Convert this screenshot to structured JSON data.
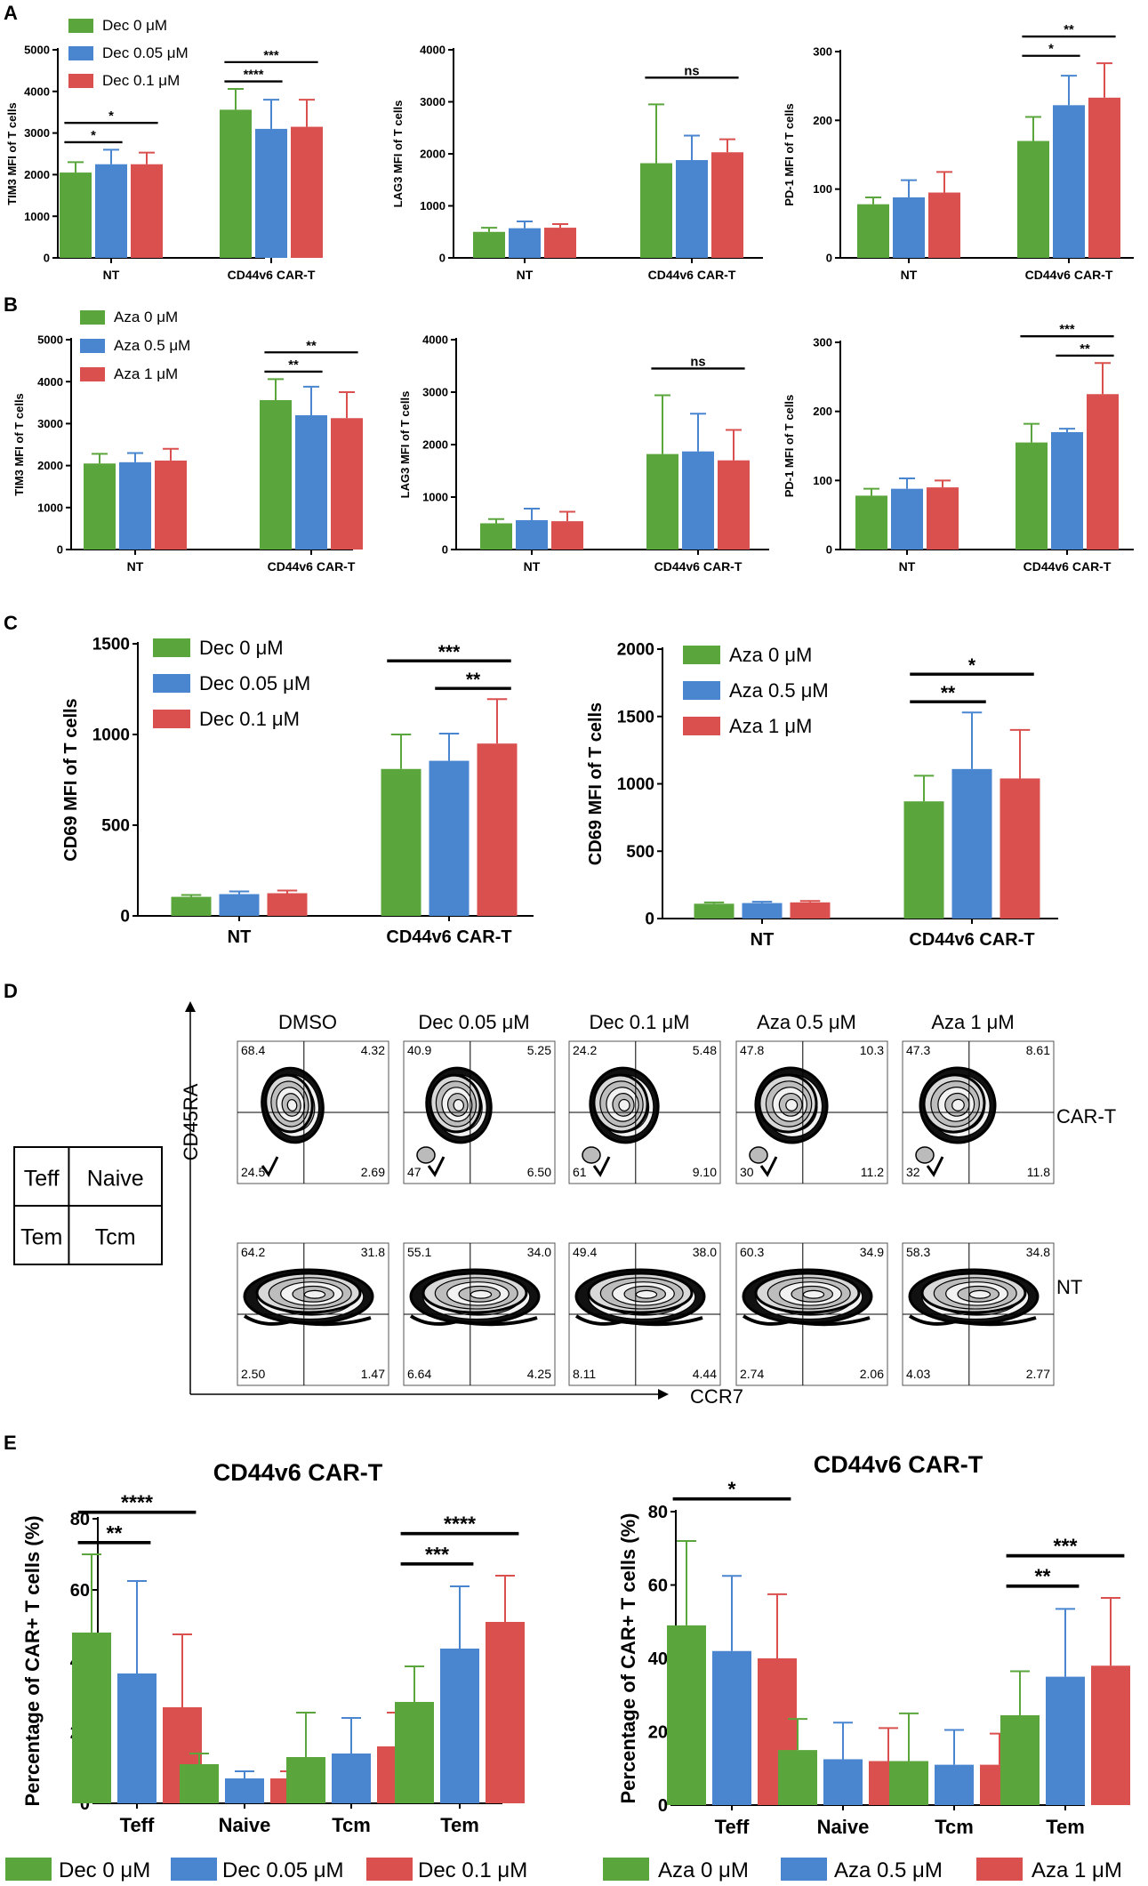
{
  "colors": {
    "green": "#5aa63c",
    "blue": "#4a86d0",
    "red": "#d9504f"
  },
  "panel_labels": {
    "A": "A",
    "B": "B",
    "C": "C",
    "D": "D",
    "E": "E"
  },
  "chart_data": [
    {
      "id": "A1",
      "type": "bar",
      "panel": "A",
      "categories": [
        "NT",
        "CD44v6 CAR-T"
      ],
      "ylabel": "TIM3 MFI of T cells",
      "ylim": [
        0,
        5000
      ],
      "ticks": [
        "0",
        "1000",
        "2000",
        "3000",
        "4000",
        "5000"
      ],
      "legend": [
        "Dec 0 μM",
        "Dec 0.05 μM",
        "Dec 0.1 μM"
      ],
      "series": [
        {
          "name": "Dec 0 μM",
          "values": [
            2050,
            3560
          ],
          "errors": [
            250,
            500
          ]
        },
        {
          "name": "Dec 0.05 μM",
          "values": [
            2250,
            3100
          ],
          "errors": [
            350,
            700
          ]
        },
        {
          "name": "Dec 0.1 μM",
          "values": [
            2250,
            3150
          ],
          "errors": [
            280,
            650
          ]
        }
      ],
      "sig": [
        {
          "g": 0,
          "a": 0,
          "b": 1,
          "label": "*",
          "lvl": 0
        },
        {
          "g": 0,
          "a": 0,
          "b": 2,
          "label": "*",
          "lvl": 1
        },
        {
          "g": 1,
          "a": 0,
          "b": 1,
          "label": "****",
          "lvl": 0
        },
        {
          "g": 1,
          "a": 0,
          "b": 2,
          "label": "***",
          "lvl": 1
        }
      ]
    },
    {
      "id": "A2",
      "type": "bar",
      "panel": "A",
      "categories": [
        "NT",
        "CD44v6 CAR-T"
      ],
      "ylabel": "LAG3 MFI of T cells",
      "ylim": [
        0,
        4000
      ],
      "ticks": [
        "0",
        "1000",
        "2000",
        "3000",
        "4000"
      ],
      "series": [
        {
          "name": "Dec 0 μM",
          "values": [
            500,
            1820
          ],
          "errors": [
            80,
            1130
          ]
        },
        {
          "name": "Dec 0.05 μM",
          "values": [
            570,
            1880
          ],
          "errors": [
            130,
            470
          ]
        },
        {
          "name": "Dec 0.1 μM",
          "values": [
            580,
            2030
          ],
          "errors": [
            70,
            250
          ]
        }
      ],
      "sig": [
        {
          "g": 1,
          "a": 0,
          "b": 2,
          "label": "ns",
          "lvl": 1
        }
      ]
    },
    {
      "id": "A3",
      "type": "bar",
      "panel": "A",
      "categories": [
        "NT",
        "CD44v6 CAR-T"
      ],
      "ylabel": "PD-1 MFI of T cells",
      "ylim": [
        0,
        300
      ],
      "ticks": [
        "0",
        "100",
        "200",
        "300"
      ],
      "series": [
        {
          "name": "Dec 0 μM",
          "values": [
            78,
            170
          ],
          "errors": [
            10,
            35
          ]
        },
        {
          "name": "Dec 0.05 μM",
          "values": [
            88,
            222
          ],
          "errors": [
            25,
            43
          ]
        },
        {
          "name": "Dec 0.1 μM",
          "values": [
            95,
            233
          ],
          "errors": [
            30,
            50
          ]
        }
      ],
      "sig": [
        {
          "g": 1,
          "a": 0,
          "b": 1,
          "label": "*",
          "lvl": 0
        },
        {
          "g": 1,
          "a": 0,
          "b": 2,
          "label": "**",
          "lvl": 1
        }
      ]
    },
    {
      "id": "B1",
      "type": "bar",
      "panel": "B",
      "categories": [
        "NT",
        "CD44v6 CAR-T"
      ],
      "ylabel": "TIM3 MFI of T cells",
      "ylim": [
        0,
        5000
      ],
      "ticks": [
        "0",
        "1000",
        "2000",
        "3000",
        "4000",
        "5000"
      ],
      "legend": [
        "Aza 0 μM",
        "Aza 0.5 μM",
        "Aza 1 μM"
      ],
      "series": [
        {
          "name": "Aza 0 μM",
          "values": [
            2050,
            3560
          ],
          "errors": [
            230,
            500
          ]
        },
        {
          "name": "Aza 0.5 μM",
          "values": [
            2080,
            3200
          ],
          "errors": [
            220,
            680
          ]
        },
        {
          "name": "Aza 1 μM",
          "values": [
            2120,
            3130
          ],
          "errors": [
            280,
            620
          ]
        }
      ],
      "sig": [
        {
          "g": 1,
          "a": 0,
          "b": 1,
          "label": "**",
          "lvl": 0
        },
        {
          "g": 1,
          "a": 0,
          "b": 2,
          "label": "**",
          "lvl": 1
        }
      ]
    },
    {
      "id": "B2",
      "type": "bar",
      "panel": "B",
      "categories": [
        "NT",
        "CD44v6 CAR-T"
      ],
      "ylabel": "LAG3 MFI of T cells",
      "ylim": [
        0,
        4000
      ],
      "ticks": [
        "0",
        "1000",
        "2000",
        "3000",
        "4000"
      ],
      "series": [
        {
          "name": "Aza 0 μM",
          "values": [
            500,
            1820
          ],
          "errors": [
            80,
            1120
          ]
        },
        {
          "name": "Aza 0.5 μM",
          "values": [
            560,
            1870
          ],
          "errors": [
            220,
            720
          ]
        },
        {
          "name": "Aza 1 μM",
          "values": [
            540,
            1700
          ],
          "errors": [
            180,
            580
          ]
        }
      ],
      "sig": [
        {
          "g": 1,
          "a": 0,
          "b": 2,
          "label": "ns",
          "lvl": 1
        }
      ]
    },
    {
      "id": "B3",
      "type": "bar",
      "panel": "B",
      "categories": [
        "NT",
        "CD44v6 CAR-T"
      ],
      "ylabel": "PD-1 MFI of T cells",
      "ylim": [
        0,
        300
      ],
      "ticks": [
        "0",
        "100",
        "200",
        "300"
      ],
      "series": [
        {
          "name": "Aza 0 μM",
          "values": [
            78,
            155
          ],
          "errors": [
            10,
            27
          ]
        },
        {
          "name": "Aza 0.5 μM",
          "values": [
            88,
            170
          ],
          "errors": [
            15,
            5
          ]
        },
        {
          "name": "Aza 1 μM",
          "values": [
            90,
            225
          ],
          "errors": [
            10,
            45
          ]
        }
      ],
      "sig": [
        {
          "g": 1,
          "a": 1,
          "b": 2,
          "label": "**",
          "lvl": 0
        },
        {
          "g": 1,
          "a": 0,
          "b": 2,
          "label": "***",
          "lvl": 1
        }
      ]
    },
    {
      "id": "C1",
      "type": "bar",
      "panel": "C",
      "categories": [
        "NT",
        "CD44v6 CAR-T"
      ],
      "ylabel": "CD69 MFI of T cells",
      "ylim": [
        0,
        1500
      ],
      "ticks": [
        "0",
        "500",
        "1000",
        "1500"
      ],
      "legend": [
        "Dec 0 μM",
        "Dec 0.05 μM",
        "Dec 0.1 μM"
      ],
      "series": [
        {
          "name": "Dec 0 μM",
          "values": [
            105,
            810
          ],
          "errors": [
            10,
            190
          ]
        },
        {
          "name": "Dec 0.05 μM",
          "values": [
            120,
            855
          ],
          "errors": [
            15,
            150
          ]
        },
        {
          "name": "Dec 0.1 μM",
          "values": [
            125,
            950
          ],
          "errors": [
            15,
            245
          ]
        }
      ],
      "sig": [
        {
          "g": 1,
          "a": 1,
          "b": 2,
          "label": "**",
          "lvl": 0
        },
        {
          "g": 1,
          "a": 0,
          "b": 2,
          "label": "***",
          "lvl": 1
        }
      ]
    },
    {
      "id": "C2",
      "type": "bar",
      "panel": "C",
      "categories": [
        "NT",
        "CD44v6 CAR-T"
      ],
      "ylabel": "CD69 MFI of T cells",
      "ylim": [
        0,
        2000
      ],
      "ticks": [
        "0",
        "500",
        "1000",
        "1500",
        "2000"
      ],
      "legend": [
        "Aza 0 μM",
        "Aza 0.5 μM",
        "Aza 1 μM"
      ],
      "series": [
        {
          "name": "Aza 0 μM",
          "values": [
            110,
            870
          ],
          "errors": [
            10,
            190
          ]
        },
        {
          "name": "Aza 0.5 μM",
          "values": [
            115,
            1110
          ],
          "errors": [
            10,
            420
          ]
        },
        {
          "name": "Aza 1 μM",
          "values": [
            120,
            1040
          ],
          "errors": [
            10,
            360
          ]
        }
      ],
      "sig": [
        {
          "g": 1,
          "a": 0,
          "b": 1,
          "label": "**",
          "lvl": 0
        },
        {
          "g": 1,
          "a": 0,
          "b": 2,
          "label": "*",
          "lvl": 1
        }
      ]
    },
    {
      "id": "E1",
      "type": "bar",
      "panel": "E",
      "title": "CD44v6 CAR-T",
      "categories": [
        "Teff",
        "Naive",
        "Tcm",
        "Tem"
      ],
      "ylabel": "Percentage of CAR+ T cells (%)",
      "ylim": [
        0,
        80
      ],
      "ticks": [
        "0",
        "20",
        "40",
        "60",
        "80"
      ],
      "legend": [
        "Dec 0 μM",
        "Dec 0.05 μM",
        "Dec 0.1 μM"
      ],
      "series": [
        {
          "name": "Dec 0 μM",
          "values": [
            48,
            11,
            13,
            28.5
          ],
          "errors": [
            22,
            3,
            12.5,
            10
          ]
        },
        {
          "name": "Dec 0.05 μM",
          "values": [
            36.5,
            7,
            14,
            43.5
          ],
          "errors": [
            26,
            2,
            10,
            17.5
          ]
        },
        {
          "name": "Dec 0.1 μM",
          "values": [
            27,
            7,
            16,
            51
          ],
          "errors": [
            20.5,
            2,
            9.5,
            13
          ]
        }
      ],
      "sig": [
        {
          "g": 0,
          "a": 0,
          "b": 1,
          "label": "**",
          "lvl": 0
        },
        {
          "g": 0,
          "a": 0,
          "b": 2,
          "label": "****",
          "lvl": 1
        },
        {
          "g": 3,
          "a": 0,
          "b": 1,
          "label": "***",
          "lvl": 0
        },
        {
          "g": 3,
          "a": 0,
          "b": 2,
          "label": "****",
          "lvl": 1
        }
      ]
    },
    {
      "id": "E2",
      "type": "bar",
      "panel": "E",
      "title": "CD44v6 CAR-T",
      "categories": [
        "Teff",
        "Naive",
        "Tcm",
        "Tem"
      ],
      "ylabel": "Percentage of CAR+ T cells (%)",
      "ylim": [
        0,
        80
      ],
      "ticks": [
        "0",
        "20",
        "40",
        "60",
        "80"
      ],
      "legend": [
        "Aza 0 μM",
        "Aza 0.5 μM",
        "Aza 1 μM"
      ],
      "series": [
        {
          "name": "Aza 0 μM",
          "values": [
            49,
            15,
            12,
            24.5
          ],
          "errors": [
            23,
            8.5,
            13,
            12
          ]
        },
        {
          "name": "Aza 0.5 μM",
          "values": [
            42,
            12.5,
            11,
            35
          ],
          "errors": [
            20.5,
            10,
            9.5,
            18.5
          ]
        },
        {
          "name": "Aza 1 μM",
          "values": [
            40,
            12,
            11,
            38
          ],
          "errors": [
            17.5,
            9,
            8.5,
            18.5
          ]
        }
      ],
      "sig": [
        {
          "g": 0,
          "a": 0,
          "b": 2,
          "label": "*",
          "lvl": 1
        },
        {
          "g": 3,
          "a": 0,
          "b": 1,
          "label": "**",
          "lvl": 0
        },
        {
          "g": 3,
          "a": 0,
          "b": 2,
          "label": "***",
          "lvl": 1
        }
      ]
    }
  ],
  "flow": {
    "columns": [
      "DMSO",
      "Dec 0.05 μM",
      "Dec 0.1 μM",
      "Aza 0.5 μM",
      "Aza 1 μM"
    ],
    "rows": [
      "CAR-T",
      "NT"
    ],
    "y_axis": "CD45RA",
    "x_axis": "CCR7",
    "quadrants": [
      [
        [
          "68.4",
          "4.32",
          "24.5",
          "2.69"
        ],
        [
          "40.9",
          "5.25",
          "47",
          "6.50"
        ],
        [
          "24.2",
          "5.48",
          "61",
          "9.10"
        ],
        [
          "47.8",
          "10.3",
          "30",
          "11.2"
        ],
        [
          "47.3",
          "8.61",
          "32",
          "11.8"
        ]
      ],
      [
        [
          "64.2",
          "31.8",
          "2.50",
          "1.47"
        ],
        [
          "55.1",
          "34.0",
          "6.64",
          "4.25"
        ],
        [
          "49.4",
          "38.0",
          "8.11",
          "4.44"
        ],
        [
          "60.3",
          "34.9",
          "2.74",
          "2.06"
        ],
        [
          "58.3",
          "34.8",
          "4.03",
          "2.77"
        ]
      ]
    ],
    "key_table": [
      [
        "Teff",
        "Naive"
      ],
      [
        "Tem",
        "Tcm"
      ]
    ]
  }
}
